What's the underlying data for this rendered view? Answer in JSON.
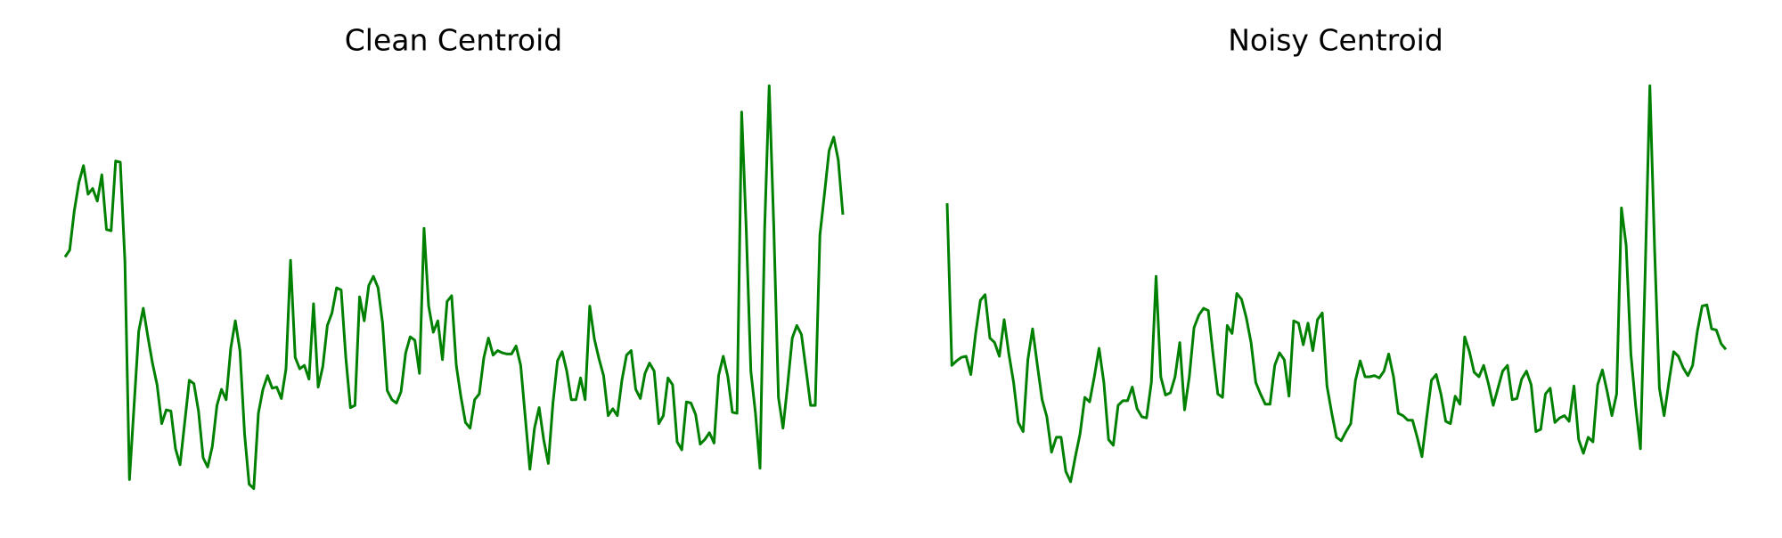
{
  "chart_data": [
    {
      "type": "line",
      "title": "Clean Centroid",
      "color": "#008000",
      "ylim": [
        0,
        380
      ],
      "values": [
        215,
        221,
        255,
        280,
        295,
        270,
        275,
        264,
        287,
        239,
        238,
        299,
        298,
        211,
        20,
        85,
        150,
        170,
        145,
        122,
        103,
        69,
        81,
        80,
        47,
        33,
        70,
        107,
        104,
        80,
        39,
        31,
        49,
        85,
        99,
        90,
        135,
        159,
        133,
        60,
        16,
        12,
        78,
        99,
        111,
        100,
        101,
        91,
        117,
        212,
        127,
        117,
        120,
        108,
        174,
        101,
        119,
        155,
        166,
        188,
        186,
        127,
        83,
        85,
        180,
        159,
        190,
        198,
        188,
        157,
        98,
        90,
        87,
        97,
        131,
        145,
        142,
        113,
        240,
        172,
        149,
        159,
        125,
        176,
        181,
        120,
        93,
        70,
        65,
        90,
        95,
        127,
        144,
        129,
        133,
        131,
        130,
        130,
        137,
        120,
        74,
        29,
        65,
        83,
        55,
        34,
        87,
        124,
        132,
        115,
        90,
        90,
        109,
        90,
        172,
        143,
        126,
        111,
        76,
        82,
        76,
        107,
        129,
        133,
        99,
        91,
        113,
        122,
        115,
        69,
        76,
        109,
        103,
        53,
        46,
        88,
        87,
        77,
        51,
        55,
        61,
        52,
        111,
        128,
        110,
        79,
        78,
        342,
        240,
        115,
        78,
        30,
        240,
        365,
        240,
        92,
        65,
        103,
        144,
        155,
        147,
        116,
        85,
        85,
        234,
        270,
        308,
        320,
        300,
        252
      ]
    },
    {
      "type": "line",
      "title": "Noisy Centroid",
      "color": "#008000",
      "ylim": [
        0,
        380
      ],
      "values": [
        262,
        120,
        124,
        127,
        128,
        112,
        148,
        177,
        182,
        144,
        140,
        128,
        160,
        130,
        105,
        70,
        62,
        125,
        152,
        120,
        90,
        75,
        44,
        57,
        57,
        27,
        18,
        40,
        60,
        92,
        88,
        110,
        135,
        105,
        55,
        50,
        85,
        89,
        89,
        101,
        82,
        75,
        74,
        105,
        198,
        110,
        94,
        96,
        110,
        140,
        81,
        110,
        153,
        164,
        170,
        168,
        130,
        95,
        92,
        155,
        148,
        183,
        178,
        162,
        140,
        105,
        95,
        86,
        86,
        120,
        131,
        125,
        93,
        159,
        157,
        138,
        157,
        133,
        160,
        166,
        102,
        78,
        57,
        54,
        62,
        69,
        107,
        124,
        110,
        110,
        111,
        109,
        115,
        130,
        110,
        78,
        76,
        72,
        72,
        57,
        40,
        75,
        107,
        112,
        95,
        71,
        69,
        93,
        86,
        145,
        132,
        114,
        110,
        120,
        104,
        85,
        100,
        115,
        120,
        90,
        91,
        108,
        115,
        103,
        62,
        64,
        95,
        100,
        70,
        74,
        76,
        71,
        102,
        55,
        43,
        57,
        53,
        103,
        116,
        97,
        76,
        95,
        258,
        225,
        130,
        85,
        47,
        200,
        365,
        220,
        100,
        76,
        105,
        132,
        128,
        118,
        111,
        120,
        150,
        172,
        173,
        152,
        151,
        139,
        134
      ]
    }
  ]
}
